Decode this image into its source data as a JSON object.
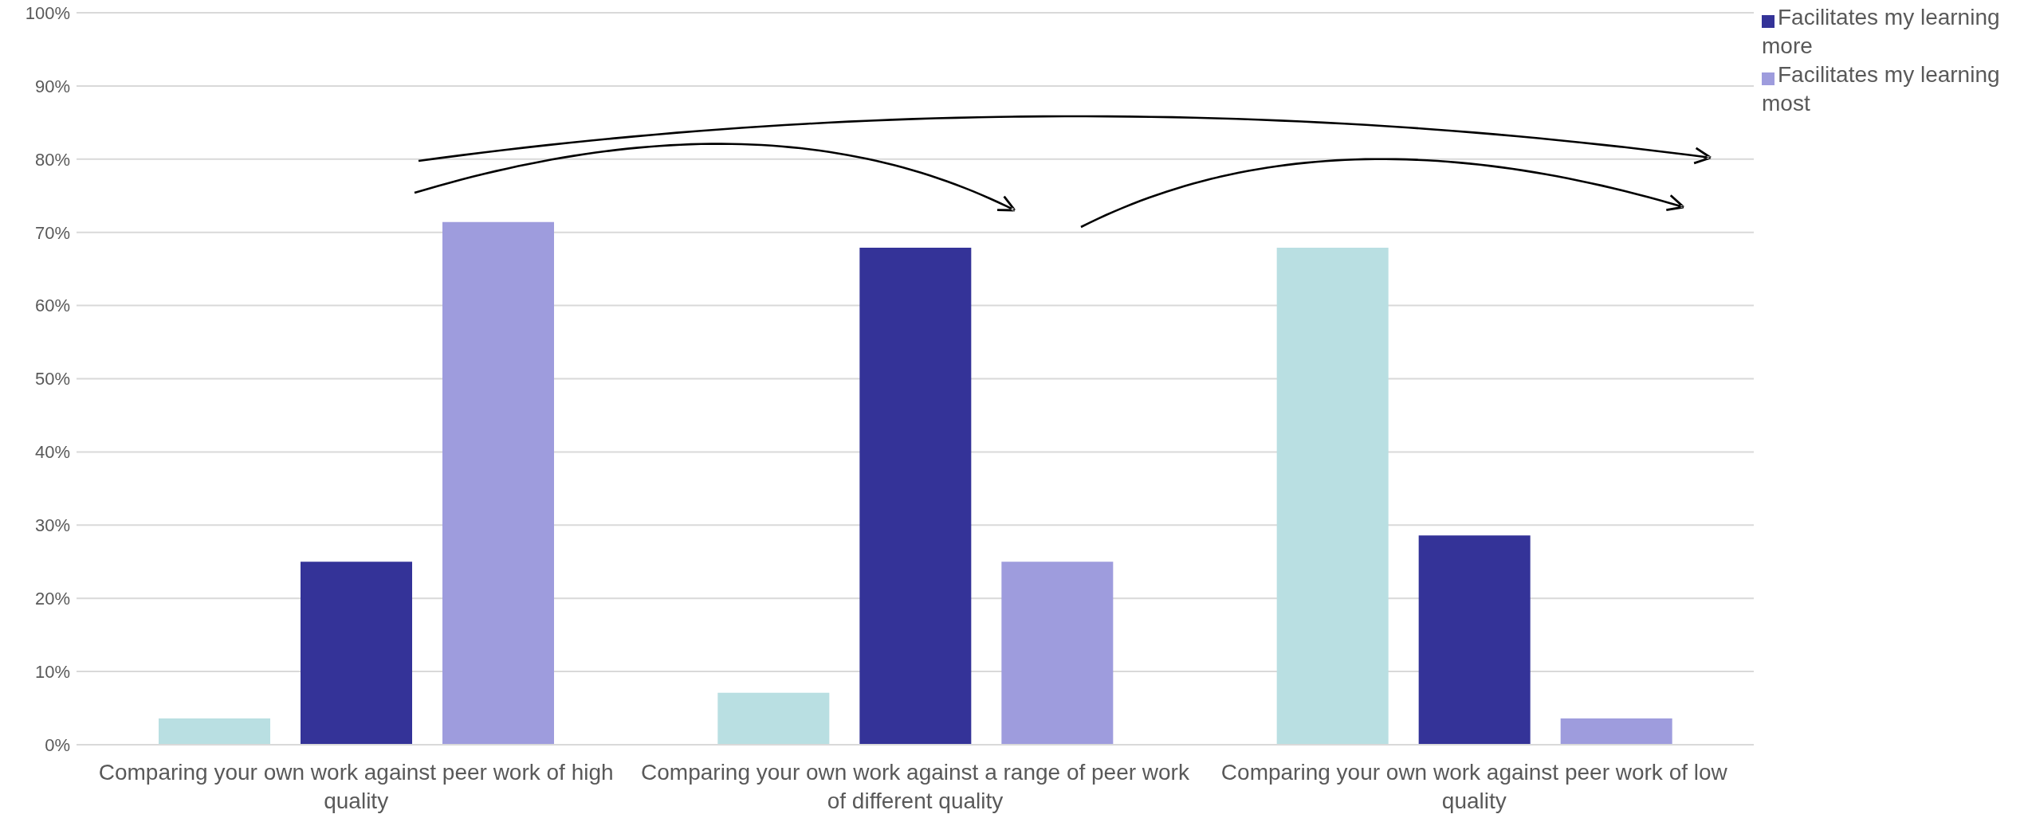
{
  "chart_data": {
    "type": "bar",
    "categories": [
      "Comparing your own work against peer work of high quality",
      "Comparing your own work against a range of peer work of different quality",
      "Comparing your own work against peer work of low quality"
    ],
    "series": [
      {
        "color": "#b9dfe2",
        "values": [
          3.6,
          7.1,
          67.9
        ]
      },
      {
        "name": "Facilitates my learning more",
        "color": "#343398",
        "values": [
          25,
          67.9,
          28.6
        ]
      },
      {
        "name": "Facilitates my learning most",
        "color": "#9e9cdd",
        "values": [
          71.4,
          25,
          3.6
        ]
      }
    ],
    "ylim": [
      0,
      100
    ],
    "yticks": [
      {
        "value": 0,
        "label": "0%"
      },
      {
        "value": 10,
        "label": "10%"
      },
      {
        "value": 20,
        "label": "20%"
      },
      {
        "value": 30,
        "label": "30%"
      },
      {
        "value": 40,
        "label": "40%"
      },
      {
        "value": 50,
        "label": "50%"
      },
      {
        "value": 60,
        "label": "60%"
      },
      {
        "value": 70,
        "label": "70%"
      },
      {
        "value": 80,
        "label": "80%"
      },
      {
        "value": 90,
        "label": "90%"
      },
      {
        "value": 100,
        "label": "100%"
      }
    ],
    "grid": "y",
    "legend": "top right"
  }
}
